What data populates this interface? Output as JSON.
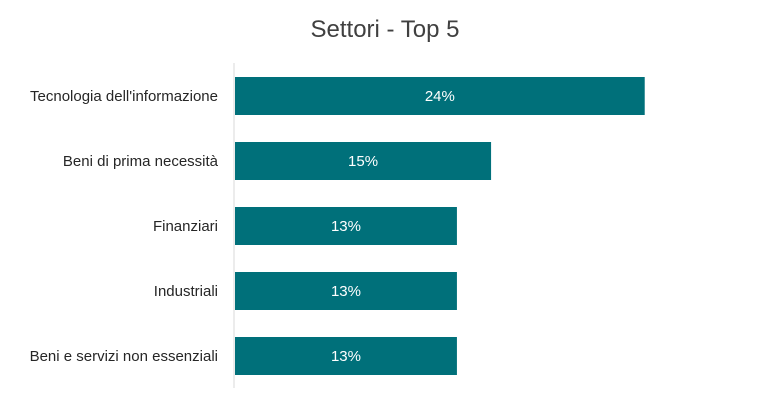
{
  "chart_data": {
    "type": "bar",
    "orientation": "horizontal",
    "title": "Settori - Top 5",
    "categories": [
      "Tecnologia dell'informazione",
      "Beni di prima necessità",
      "Finanziari",
      "Industriali",
      "Beni e servizi non essenziali"
    ],
    "values": [
      24,
      15,
      13,
      13,
      13
    ],
    "value_labels": [
      "24%",
      "15%",
      "13%",
      "13%",
      "13%"
    ],
    "unit": "%",
    "xlim": [
      0,
      28
    ],
    "grid": false,
    "legend": "none",
    "colors": {
      "bar": "#00707A",
      "axis": "#D9D9D9",
      "title": "#404040",
      "label": "#262626",
      "data_label": "#FFFFFF"
    }
  }
}
